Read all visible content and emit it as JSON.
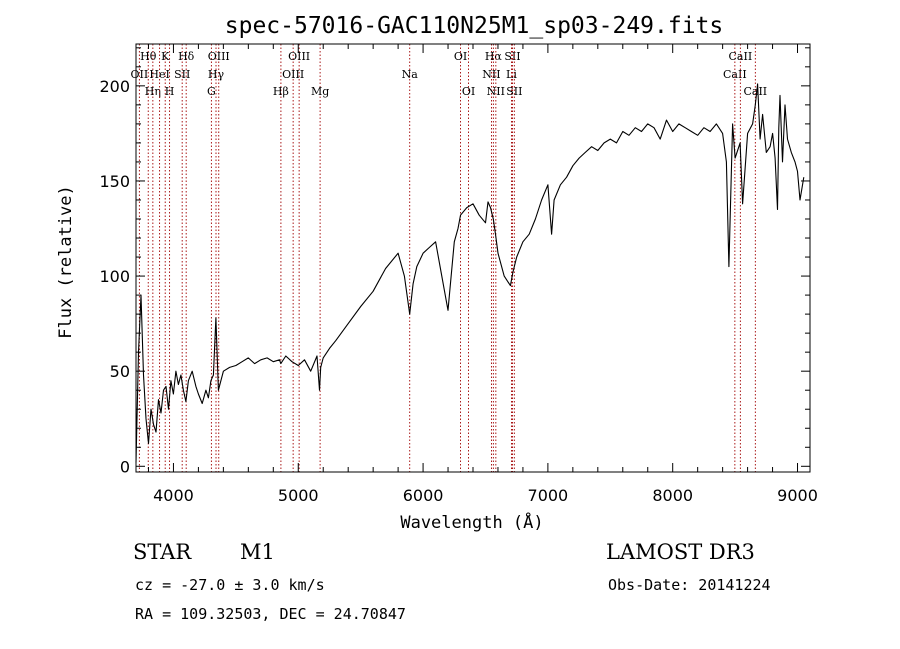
{
  "chart_data": {
    "type": "line",
    "title": "spec-57016-GAC110N25M1_sp03-249.fits",
    "xlabel": "Wavelength (Å)",
    "ylabel": "Flux (relative)",
    "xlim": [
      3700,
      9100
    ],
    "ylim": [
      -3,
      222
    ],
    "x_ticks": [
      4000,
      5000,
      6000,
      7000,
      8000,
      9000
    ],
    "y_ticks": [
      0,
      50,
      100,
      150,
      200
    ],
    "series": [
      {
        "name": "flux",
        "color": "#000000",
        "x": [
          3700,
          3720,
          3740,
          3760,
          3780,
          3800,
          3820,
          3840,
          3860,
          3880,
          3900,
          3920,
          3940,
          3960,
          3980,
          4000,
          4020,
          4040,
          4060,
          4080,
          4100,
          4120,
          4150,
          4180,
          4200,
          4230,
          4260,
          4280,
          4300,
          4320,
          4340,
          4360,
          4400,
          4450,
          4500,
          4550,
          4600,
          4650,
          4700,
          4750,
          4800,
          4850,
          4860,
          4900,
          4950,
          5000,
          5050,
          5100,
          5150,
          5170,
          5180,
          5200,
          5250,
          5300,
          5400,
          5500,
          5600,
          5700,
          5800,
          5850,
          5880,
          5893,
          5920,
          5950,
          6000,
          6050,
          6100,
          6150,
          6200,
          6250,
          6280,
          6300,
          6350,
          6400,
          6450,
          6500,
          6520,
          6540,
          6563,
          6580,
          6600,
          6650,
          6700,
          6720,
          6750,
          6800,
          6850,
          6900,
          6950,
          7000,
          7030,
          7050,
          7100,
          7150,
          7200,
          7250,
          7300,
          7350,
          7400,
          7450,
          7500,
          7550,
          7600,
          7650,
          7700,
          7750,
          7800,
          7850,
          7900,
          7950,
          8000,
          8050,
          8100,
          8150,
          8200,
          8250,
          8300,
          8350,
          8400,
          8430,
          8450,
          8480,
          8500,
          8540,
          8560,
          8600,
          8640,
          8662,
          8680,
          8700,
          8720,
          8750,
          8780,
          8800,
          8820,
          8840,
          8850,
          8860,
          8880,
          8900,
          8920,
          8950,
          8980,
          9000,
          9020,
          9050
        ],
        "values": [
          2,
          60,
          90,
          48,
          25,
          12,
          30,
          22,
          18,
          35,
          28,
          40,
          42,
          30,
          45,
          38,
          50,
          43,
          48,
          40,
          34,
          45,
          50,
          42,
          38,
          33,
          40,
          36,
          45,
          48,
          78,
          40,
          50,
          52,
          53,
          55,
          57,
          54,
          56,
          57,
          55,
          56,
          54,
          58,
          55,
          53,
          56,
          50,
          58,
          40,
          52,
          57,
          62,
          66,
          75,
          84,
          92,
          104,
          112,
          100,
          86,
          80,
          96,
          105,
          112,
          115,
          118,
          100,
          82,
          118,
          125,
          132,
          136,
          138,
          132,
          128,
          139,
          136,
          130,
          122,
          112,
          100,
          95,
          102,
          110,
          118,
          122,
          130,
          140,
          148,
          122,
          140,
          148,
          152,
          158,
          162,
          165,
          168,
          166,
          170,
          172,
          170,
          176,
          174,
          178,
          176,
          180,
          178,
          172,
          182,
          176,
          180,
          178,
          176,
          174,
          178,
          176,
          180,
          175,
          160,
          105,
          180,
          162,
          170,
          138,
          175,
          180,
          190,
          201,
          172,
          185,
          165,
          168,
          175,
          162,
          135,
          178,
          195,
          160,
          190,
          172,
          165,
          160,
          155,
          140,
          152
        ]
      }
    ],
    "spectral_lines": [
      {
        "wavelength": 3727,
        "label": "OII",
        "row": 2
      },
      {
        "wavelength": 3798,
        "label": "Hθ",
        "row": 1
      },
      {
        "wavelength": 3835,
        "label": "Hη",
        "row": 3
      },
      {
        "wavelength": 3889,
        "label": "HeI",
        "row": 2
      },
      {
        "wavelength": 3934,
        "label": "K",
        "row": 1
      },
      {
        "wavelength": 3969,
        "label": "H",
        "row": 3
      },
      {
        "wavelength": 4070,
        "label": "SII",
        "row": 2
      },
      {
        "wavelength": 4102,
        "label": "Hδ",
        "row": 1
      },
      {
        "wavelength": 4304,
        "label": "G",
        "row": 3
      },
      {
        "wavelength": 4341,
        "label": "Hγ",
        "row": 2
      },
      {
        "wavelength": 4363,
        "label": "OIII",
        "row": 1
      },
      {
        "wavelength": 4861,
        "label": "Hβ",
        "row": 3
      },
      {
        "wavelength": 4959,
        "label": "OIII",
        "row": 2
      },
      {
        "wavelength": 5007,
        "label": "OIII",
        "row": 1
      },
      {
        "wavelength": 5175,
        "label": "Mg",
        "row": 3
      },
      {
        "wavelength": 5893,
        "label": "Na",
        "row": 2
      },
      {
        "wavelength": 6300,
        "label": "OI",
        "row": 1
      },
      {
        "wavelength": 6364,
        "label": "OI",
        "row": 3
      },
      {
        "wavelength": 6548,
        "label": "NII",
        "row": 2
      },
      {
        "wavelength": 6563,
        "label": "Hα",
        "row": 1
      },
      {
        "wavelength": 6583,
        "label": "NII",
        "row": 3
      },
      {
        "wavelength": 6708,
        "label": "Li",
        "row": 2
      },
      {
        "wavelength": 6716,
        "label": "SII",
        "row": 1
      },
      {
        "wavelength": 6731,
        "label": "SII",
        "row": 3
      },
      {
        "wavelength": 8498,
        "label": "CaII",
        "row": 2
      },
      {
        "wavelength": 8542,
        "label": "CaII",
        "row": 1
      },
      {
        "wavelength": 8662,
        "label": "CaII",
        "row": 3
      }
    ],
    "line_color": "#a00000"
  },
  "info": {
    "object_class": "STAR",
    "subclass": "M1",
    "survey": "LAMOST DR3",
    "cz": "cz = -27.0 ± 3.0 km/s",
    "obs_date": "Obs-Date: 20141224",
    "coords": "RA = 109.32503, DEC =  24.70847"
  }
}
